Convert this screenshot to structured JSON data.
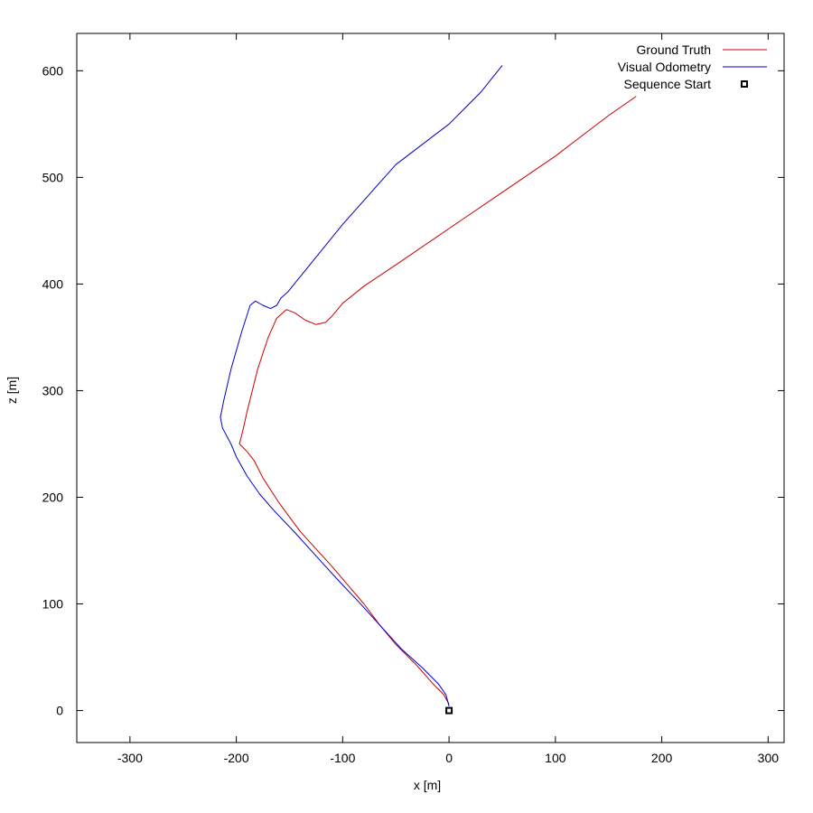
{
  "chart_data": {
    "type": "line",
    "title": "",
    "xlabel": "x [m]",
    "ylabel": "z [m]",
    "xlim": [
      -350,
      315
    ],
    "ylim": [
      -30,
      635
    ],
    "xticks": [
      -300,
      -200,
      -100,
      0,
      100,
      200,
      300
    ],
    "yticks": [
      0,
      100,
      200,
      300,
      400,
      500,
      600
    ],
    "grid": false,
    "legend_position": "top-right",
    "legend": [
      {
        "label": "Ground Truth",
        "color": "#cc0000",
        "kind": "line"
      },
      {
        "label": "Visual Odometry",
        "color": "#0000cc",
        "kind": "line"
      },
      {
        "label": "Sequence Start",
        "color": "#000000",
        "kind": "square"
      }
    ],
    "series": [
      {
        "name": "Ground Truth",
        "color": "#cc0000",
        "points": [
          [
            0,
            6
          ],
          [
            -5,
            15
          ],
          [
            -15,
            25
          ],
          [
            -30,
            42
          ],
          [
            -50,
            62
          ],
          [
            -65,
            80
          ],
          [
            -80,
            100
          ],
          [
            -110,
            135
          ],
          [
            -140,
            168
          ],
          [
            -160,
            195
          ],
          [
            -175,
            218
          ],
          [
            -183,
            234
          ],
          [
            -190,
            243
          ],
          [
            -197,
            250
          ],
          [
            -194,
            262
          ],
          [
            -190,
            280
          ],
          [
            -180,
            320
          ],
          [
            -170,
            350
          ],
          [
            -162,
            368
          ],
          [
            -153,
            376
          ],
          [
            -145,
            373
          ],
          [
            -135,
            366
          ],
          [
            -125,
            362
          ],
          [
            -116,
            364
          ],
          [
            -110,
            370
          ],
          [
            -100,
            382
          ],
          [
            -80,
            398
          ],
          [
            -50,
            418
          ],
          [
            0,
            452
          ],
          [
            50,
            486
          ],
          [
            100,
            520
          ],
          [
            150,
            558
          ],
          [
            176,
            576
          ]
        ]
      },
      {
        "name": "Visual Odometry",
        "color": "#0000cc",
        "points": [
          [
            0,
            4
          ],
          [
            -3,
            15
          ],
          [
            -10,
            25
          ],
          [
            -25,
            40
          ],
          [
            -45,
            58
          ],
          [
            -65,
            80
          ],
          [
            -85,
            102
          ],
          [
            -105,
            123
          ],
          [
            -125,
            145
          ],
          [
            -145,
            167
          ],
          [
            -165,
            188
          ],
          [
            -178,
            203
          ],
          [
            -190,
            220
          ],
          [
            -200,
            238
          ],
          [
            -205,
            250
          ],
          [
            -213,
            265
          ],
          [
            -215,
            275
          ],
          [
            -212,
            290
          ],
          [
            -205,
            320
          ],
          [
            -195,
            355
          ],
          [
            -187,
            380
          ],
          [
            -182,
            384
          ],
          [
            -175,
            380
          ],
          [
            -168,
            377
          ],
          [
            -162,
            380
          ],
          [
            -158,
            387
          ],
          [
            -152,
            392
          ],
          [
            -100,
            456
          ],
          [
            -50,
            512
          ],
          [
            0,
            550
          ],
          [
            30,
            580
          ],
          [
            50,
            605
          ]
        ]
      }
    ],
    "markers": [
      {
        "name": "Sequence Start",
        "x": 0,
        "y": 0,
        "shape": "square",
        "color": "#000000"
      }
    ]
  }
}
